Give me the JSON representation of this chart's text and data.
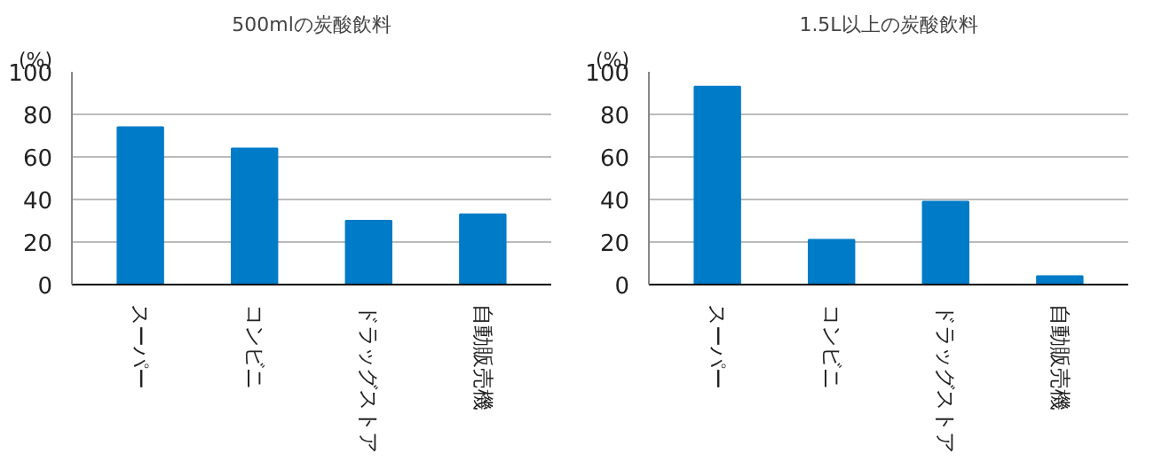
{
  "chart_data": [
    {
      "type": "bar",
      "title": "500mlの炭酸飲料",
      "ylabel": "(%)",
      "categories": [
        "スーパー",
        "コンビニ",
        "ドラッグストア",
        "自動販売機"
      ],
      "values": [
        74,
        64,
        30,
        33
      ],
      "color": "#007bc8",
      "ylim": [
        0,
        100
      ],
      "yticks": [
        0,
        20,
        40,
        60,
        80,
        100
      ],
      "grid": "y"
    },
    {
      "type": "bar",
      "title": "1.5L以上の炭酸飲料",
      "ylabel": "(%)",
      "categories": [
        "スーパー",
        "コンビニ",
        "ドラッグストア",
        "自動販売機"
      ],
      "values": [
        93,
        21,
        39,
        4
      ],
      "color": "#007bc8",
      "ylim": [
        0,
        100
      ],
      "yticks": [
        0,
        20,
        40,
        60,
        80,
        100
      ],
      "grid": "y"
    }
  ]
}
